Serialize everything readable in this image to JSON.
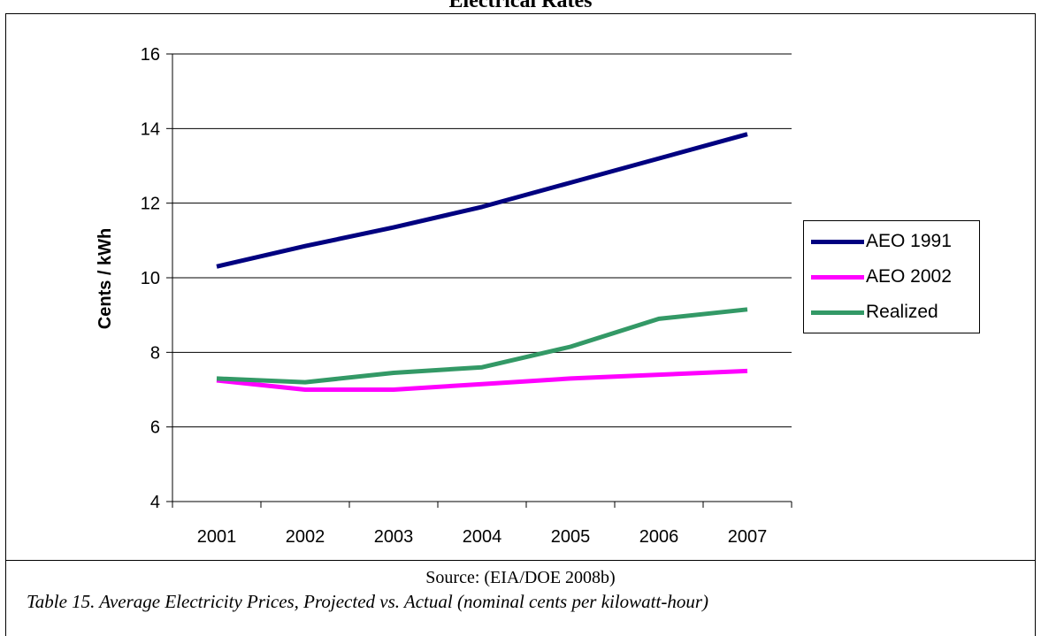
{
  "header": {
    "title": "Electrical Rates"
  },
  "chart_data": {
    "type": "line",
    "title": "Electrical Rates",
    "xlabel": "",
    "ylabel": "Cents / kWh",
    "categories": [
      "2001",
      "2002",
      "2003",
      "2004",
      "2005",
      "2006",
      "2007"
    ],
    "ylim": [
      4,
      16
    ],
    "yticks": [
      4,
      6,
      8,
      10,
      12,
      14,
      16
    ],
    "grid": true,
    "legend": "right",
    "series": [
      {
        "name": "AEO 1991",
        "color": "#000080",
        "values": [
          10.3,
          10.85,
          11.35,
          11.9,
          12.55,
          13.2,
          13.85
        ]
      },
      {
        "name": "AEO 2002",
        "color": "#FF00FF",
        "values": [
          7.25,
          7.0,
          7.0,
          7.15,
          7.3,
          7.4,
          7.5
        ]
      },
      {
        "name": "Realized",
        "color": "#339966",
        "values": [
          7.3,
          7.2,
          7.45,
          7.6,
          8.15,
          8.9,
          9.15
        ]
      }
    ]
  },
  "footer": {
    "source": "Source: (EIA/DOE 2008b)",
    "caption": "Table 15. Average Electricity Prices, Projected vs. Actual (nominal cents per kilowatt-hour)"
  }
}
